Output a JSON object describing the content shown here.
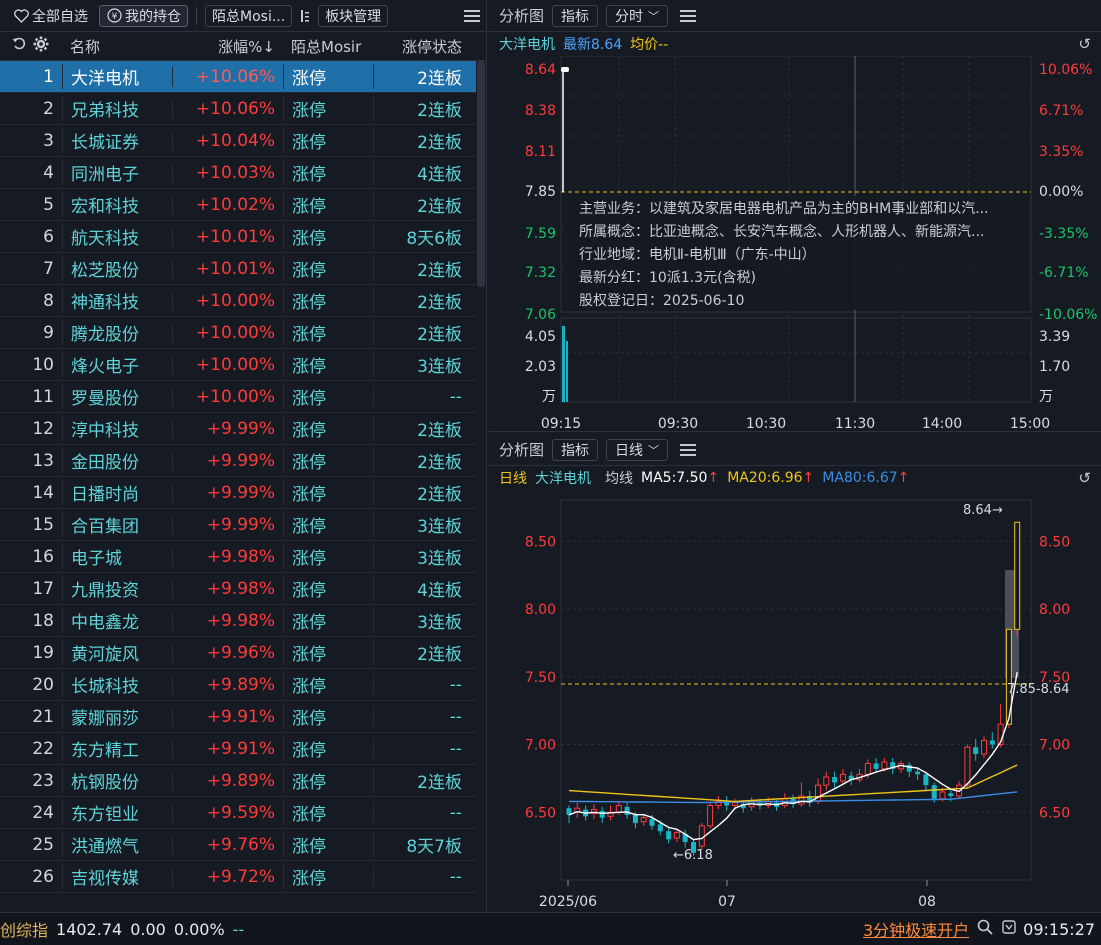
{
  "toolbar": {
    "all_watchlist": "全部自选",
    "my_holdings": "我的持仓",
    "account": "陌总Mosi...",
    "sector_manage": "板块管理"
  },
  "list": {
    "headers": {
      "name": "名称",
      "change": "涨幅%↓",
      "account": "陌总Mosir",
      "limit_status": "涨停状态"
    },
    "rows": [
      {
        "idx": "1",
        "name": "大洋电机",
        "pct": "+10.06%",
        "status": "涨停",
        "boards": "2连板"
      },
      {
        "idx": "2",
        "name": "兄弟科技",
        "pct": "+10.06%",
        "status": "涨停",
        "boards": "2连板"
      },
      {
        "idx": "3",
        "name": "长城证券",
        "pct": "+10.04%",
        "status": "涨停",
        "boards": "2连板"
      },
      {
        "idx": "4",
        "name": "同洲电子",
        "pct": "+10.03%",
        "status": "涨停",
        "boards": "4连板"
      },
      {
        "idx": "5",
        "name": "宏和科技",
        "pct": "+10.02%",
        "status": "涨停",
        "boards": "2连板"
      },
      {
        "idx": "6",
        "name": "航天科技",
        "pct": "+10.01%",
        "status": "涨停",
        "boards": "8天6板"
      },
      {
        "idx": "7",
        "name": "松芝股份",
        "pct": "+10.01%",
        "status": "涨停",
        "boards": "2连板"
      },
      {
        "idx": "8",
        "name": "神通科技",
        "pct": "+10.00%",
        "status": "涨停",
        "boards": "2连板"
      },
      {
        "idx": "9",
        "name": "腾龙股份",
        "pct": "+10.00%",
        "status": "涨停",
        "boards": "2连板"
      },
      {
        "idx": "10",
        "name": "烽火电子",
        "pct": "+10.00%",
        "status": "涨停",
        "boards": "3连板"
      },
      {
        "idx": "11",
        "name": "罗曼股份",
        "pct": "+10.00%",
        "status": "涨停",
        "boards": "--"
      },
      {
        "idx": "12",
        "name": "淳中科技",
        "pct": "+9.99%",
        "status": "涨停",
        "boards": "2连板"
      },
      {
        "idx": "13",
        "name": "金田股份",
        "pct": "+9.99%",
        "status": "涨停",
        "boards": "2连板"
      },
      {
        "idx": "14",
        "name": "日播时尚",
        "pct": "+9.99%",
        "status": "涨停",
        "boards": "2连板"
      },
      {
        "idx": "15",
        "name": "合百集团",
        "pct": "+9.99%",
        "status": "涨停",
        "boards": "3连板"
      },
      {
        "idx": "16",
        "name": "电子城",
        "pct": "+9.98%",
        "status": "涨停",
        "boards": "3连板"
      },
      {
        "idx": "17",
        "name": "九鼎投资",
        "pct": "+9.98%",
        "status": "涨停",
        "boards": "4连板"
      },
      {
        "idx": "18",
        "name": "中电鑫龙",
        "pct": "+9.98%",
        "status": "涨停",
        "boards": "3连板"
      },
      {
        "idx": "19",
        "name": "黄河旋风",
        "pct": "+9.96%",
        "status": "涨停",
        "boards": "2连板"
      },
      {
        "idx": "20",
        "name": "长城科技",
        "pct": "+9.89%",
        "status": "涨停",
        "boards": "--"
      },
      {
        "idx": "21",
        "name": "蒙娜丽莎",
        "pct": "+9.91%",
        "status": "涨停",
        "boards": "--"
      },
      {
        "idx": "22",
        "name": "东方精工",
        "pct": "+9.91%",
        "status": "涨停",
        "boards": "--"
      },
      {
        "idx": "23",
        "name": "杭钢股份",
        "pct": "+9.89%",
        "status": "涨停",
        "boards": "2连板"
      },
      {
        "idx": "24",
        "name": "东方钽业",
        "pct": "+9.59%",
        "status": "涨停",
        "boards": "--"
      },
      {
        "idx": "25",
        "name": "洪通燃气",
        "pct": "+9.76%",
        "status": "涨停",
        "boards": "8天7板"
      },
      {
        "idx": "26",
        "name": "吉视传媒",
        "pct": "+9.72%",
        "status": "涨停",
        "boards": "--"
      }
    ]
  },
  "intraday": {
    "panel_title": "分析图",
    "indicator_btn": "指标",
    "period_btn": "分时",
    "stock_name": "大洋电机",
    "latest": "最新8.64",
    "avg": "均价--",
    "price_ticks": [
      "8.64",
      "8.38",
      "8.11",
      "7.85",
      "7.59",
      "7.32",
      "7.06"
    ],
    "pct_ticks": [
      "10.06%",
      "6.71%",
      "3.35%",
      "0.00%",
      "-3.35%",
      "-6.71%",
      "-10.06%"
    ],
    "vol_ticks_left": [
      "4.05",
      "2.03",
      "万"
    ],
    "vol_ticks_right": [
      "3.39",
      "1.70",
      "万"
    ],
    "time_ticks": [
      "09:15",
      "09:30",
      "10:30",
      "11:30",
      "14:00",
      "15:00"
    ],
    "info": {
      "business": "主营业务：以建筑及家居电器电机产品为主的BHM事业部和以汽...",
      "concepts": "所属概念：比亚迪概念、长安汽车概念、人形机器人、新能源汽...",
      "region": "行业地域：电机Ⅱ-电机Ⅲ（广东-中山）",
      "dividend": "最新分红：10派1.3元(含税)",
      "record_date": "股权登记日：2025-06-10"
    }
  },
  "kline": {
    "panel_title": "分析图",
    "indicator_btn": "指标",
    "period_btn": "日线",
    "period_label": "日线",
    "stock_name": "大洋电机",
    "ma_label": "均线",
    "ma5": "MA5:7.50",
    "ma20": "MA20:6.96",
    "ma80": "MA80:6.67",
    "y_ticks": [
      "8.50",
      "8.00",
      "7.50",
      "7.00",
      "6.50"
    ],
    "x_ticks": [
      "2025/06",
      "07",
      "08"
    ],
    "high_label": "8.64→",
    "low_label": "←6.18",
    "range_label": "7.85-8.64",
    "colors": {
      "ma5": "#ffffff",
      "ma20": "#f0c419",
      "ma80": "#3a8ee6",
      "up": "#ff3b3b",
      "down": "#19b5c4"
    }
  },
  "statusbar": {
    "index_name": "创综指",
    "index_value": "1402.74",
    "change": "0.00",
    "pct": "0.00%",
    "dash": "--",
    "promo": "3分钟极速开户",
    "time": "09:15:27"
  }
}
